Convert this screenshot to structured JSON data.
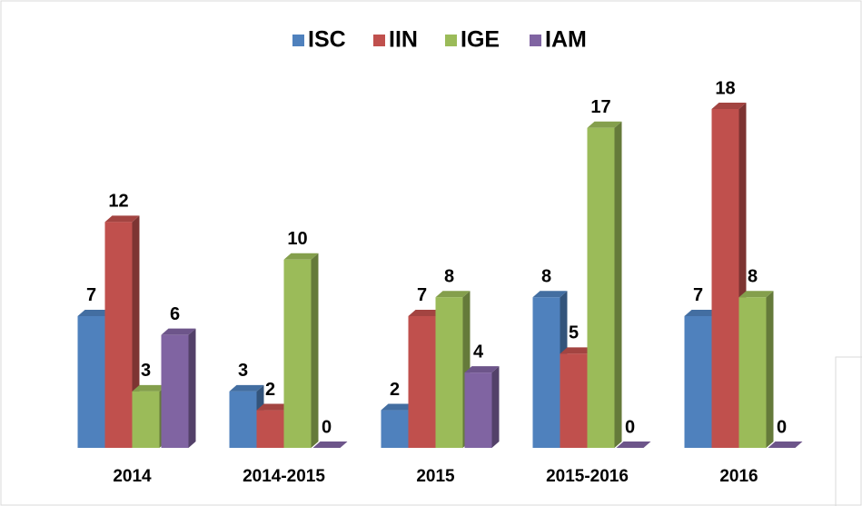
{
  "chart_data": {
    "type": "bar",
    "categories": [
      "2014",
      "2014-2015",
      "2015",
      "2015-2016",
      "2016"
    ],
    "series": [
      {
        "name": "ISC",
        "color": "#4f81bd",
        "values": [
          7,
          3,
          2,
          8,
          7
        ]
      },
      {
        "name": "IIN",
        "color": "#c0504d",
        "values": [
          12,
          2,
          7,
          5,
          18
        ]
      },
      {
        "name": "IGE",
        "color": "#9bbb59",
        "values": [
          3,
          10,
          8,
          17,
          8
        ]
      },
      {
        "name": "IAM",
        "color": "#8064a2",
        "values": [
          6,
          0,
          4,
          0,
          0
        ]
      }
    ]
  }
}
